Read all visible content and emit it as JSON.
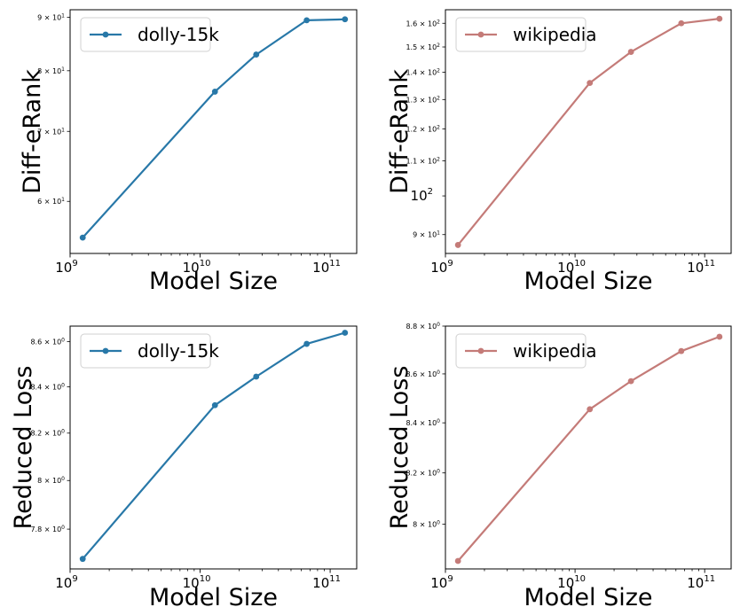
{
  "chart_data": [
    {
      "type": "line",
      "id": "dolly-diff",
      "color": "#2878a8",
      "xlabel": "Model Size",
      "ylabel": "Diff-eRank",
      "xscale": "log",
      "yscale": "log",
      "xlim": [
        1000000000,
        160000000000
      ],
      "ylim": [
        53.5,
        91.5
      ],
      "x_ticks": [
        {
          "base": "10",
          "exp": "9",
          "value": 1000000000
        },
        {
          "base": "10",
          "exp": "10",
          "value": 10000000000
        },
        {
          "base": "10",
          "exp": "11",
          "value": 100000000000
        }
      ],
      "y_ticks": [
        {
          "mant": "6 × 10",
          "exp": "1",
          "value": 60
        },
        {
          "mant": "7 × 10",
          "exp": "1",
          "value": 70
        },
        {
          "mant": "8 × 10",
          "exp": "1",
          "value": 80
        },
        {
          "mant": "9 × 10",
          "exp": "1",
          "value": 90
        }
      ],
      "legend": "dolly-15k",
      "legend_position": "top-left",
      "series": [
        {
          "name": "dolly-15k",
          "x": [
            1250000000,
            13000000000,
            27000000000,
            66000000000,
            130000000000
          ],
          "y": [
            55.4,
            76.4,
            82.9,
            89.4,
            89.6
          ]
        }
      ]
    },
    {
      "type": "line",
      "id": "wiki-diff",
      "color": "#c47b78",
      "xlabel": "Model Size",
      "ylabel": "Diff-eRank",
      "xscale": "log",
      "yscale": "log",
      "xlim": [
        1000000000,
        160000000000
      ],
      "ylim": [
        85.5,
        166
      ],
      "x_ticks": [
        {
          "base": "10",
          "exp": "9",
          "value": 1000000000
        },
        {
          "base": "10",
          "exp": "10",
          "value": 10000000000
        },
        {
          "base": "10",
          "exp": "11",
          "value": 100000000000
        }
      ],
      "y_ticks": [
        {
          "mant": "9 × 10",
          "exp": "1",
          "value": 90
        },
        {
          "mant": "10",
          "exp": "2",
          "value": 100,
          "major": true
        },
        {
          "mant": "1.1 × 10",
          "exp": "2",
          "value": 110
        },
        {
          "mant": "1.2 × 10",
          "exp": "2",
          "value": 120
        },
        {
          "mant": "1.3 × 10",
          "exp": "2",
          "value": 130
        },
        {
          "mant": "1.4 × 10",
          "exp": "2",
          "value": 140
        },
        {
          "mant": "1.5 × 10",
          "exp": "2",
          "value": 150
        },
        {
          "mant": "1.6 × 10",
          "exp": "2",
          "value": 160
        }
      ],
      "legend": "wikipedia",
      "legend_position": "top-left",
      "series": [
        {
          "name": "wikipedia",
          "x": [
            1250000000,
            13000000000,
            27000000000,
            66000000000,
            130000000000
          ],
          "y": [
            87.5,
            136,
            148,
            160,
            162
          ]
        }
      ]
    },
    {
      "type": "line",
      "id": "dolly-loss",
      "color": "#2878a8",
      "xlabel": "Model Size",
      "ylabel": "Reduced Loss",
      "xscale": "log",
      "yscale": "log",
      "xlim": [
        1000000000,
        160000000000
      ],
      "ylim": [
        7.64,
        8.67
      ],
      "x_ticks": [
        {
          "base": "10",
          "exp": "9",
          "value": 1000000000
        },
        {
          "base": "10",
          "exp": "10",
          "value": 10000000000
        },
        {
          "base": "10",
          "exp": "11",
          "value": 100000000000
        }
      ],
      "y_ticks": [
        {
          "mant": "7.8 × 10",
          "exp": "0",
          "value": 7.8
        },
        {
          "mant": "8 × 10",
          "exp": "0",
          "value": 8.0
        },
        {
          "mant": "8.2 × 10",
          "exp": "0",
          "value": 8.2
        },
        {
          "mant": "8.4 × 10",
          "exp": "0",
          "value": 8.4
        },
        {
          "mant": "8.6 × 10",
          "exp": "0",
          "value": 8.6
        }
      ],
      "legend": "dolly-15k",
      "legend_position": "top-left",
      "series": [
        {
          "name": "dolly-15k",
          "x": [
            1250000000,
            13000000000,
            27000000000,
            66000000000,
            130000000000
          ],
          "y": [
            7.68,
            8.32,
            8.445,
            8.59,
            8.64
          ]
        }
      ]
    },
    {
      "type": "line",
      "id": "wiki-loss",
      "color": "#c47b78",
      "xlabel": "Model Size",
      "ylabel": "Reduced Loss",
      "xscale": "log",
      "yscale": "log",
      "xlim": [
        1000000000,
        160000000000
      ],
      "ylim": [
        7.83,
        8.8
      ],
      "x_ticks": [
        {
          "base": "10",
          "exp": "9",
          "value": 1000000000
        },
        {
          "base": "10",
          "exp": "10",
          "value": 10000000000
        },
        {
          "base": "10",
          "exp": "11",
          "value": 100000000000
        }
      ],
      "y_ticks": [
        {
          "mant": "8 × 10",
          "exp": "0",
          "value": 8.0
        },
        {
          "mant": "8.2 × 10",
          "exp": "0",
          "value": 8.2
        },
        {
          "mant": "8.4 × 10",
          "exp": "0",
          "value": 8.4
        },
        {
          "mant": "8.6 × 10",
          "exp": "0",
          "value": 8.6
        },
        {
          "mant": "8.8 × 10",
          "exp": "0",
          "value": 8.8
        }
      ],
      "legend": "wikipedia",
      "legend_position": "top-left",
      "series": [
        {
          "name": "wikipedia",
          "x": [
            1250000000,
            13000000000,
            27000000000,
            66000000000,
            130000000000
          ],
          "y": [
            7.86,
            8.455,
            8.57,
            8.695,
            8.755
          ]
        }
      ]
    }
  ]
}
